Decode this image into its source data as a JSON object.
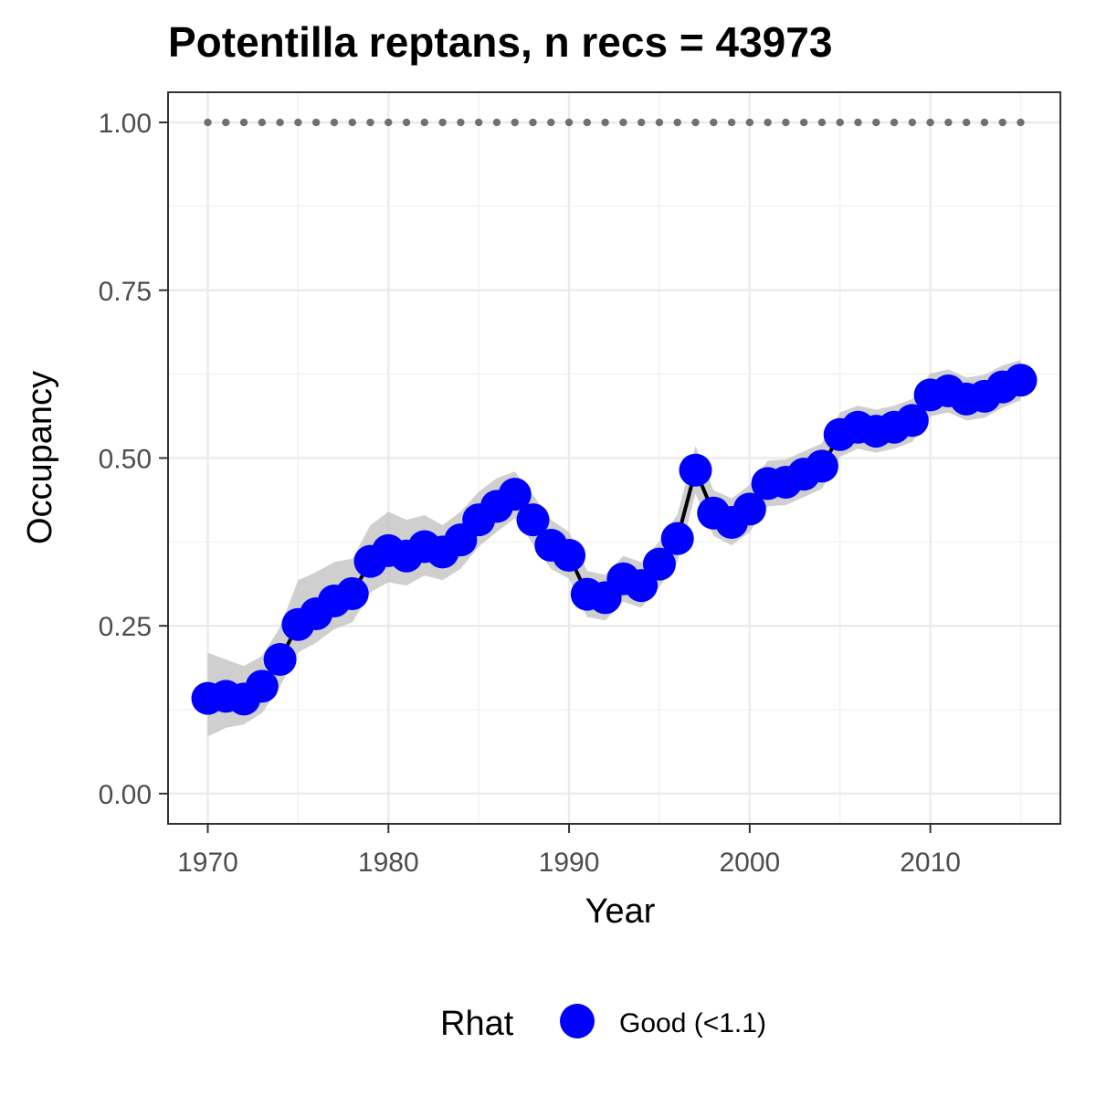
{
  "chart_data": {
    "type": "line",
    "title": "Potentilla reptans, n recs = 43973",
    "xlabel": "Year",
    "ylabel": "Occupancy",
    "xlim": [
      1967.8,
      2017.2
    ],
    "ylim": [
      -0.045,
      1.045
    ],
    "x_ticks": [
      1970,
      1980,
      1990,
      2000,
      2010
    ],
    "x_tick_labels": [
      "1970",
      "1980",
      "1990",
      "2000",
      "2010"
    ],
    "y_ticks": [
      0,
      0.25,
      0.5,
      0.75,
      1.0
    ],
    "y_tick_labels": [
      "0.00",
      "0.25",
      "0.50",
      "0.75",
      "1.00"
    ],
    "grid": true,
    "legend": {
      "title": "Rhat",
      "position": "bottom",
      "entries": [
        {
          "label": "Good (<1.1)",
          "color": "#0000ff"
        }
      ]
    },
    "colors": {
      "points": "#0000ff",
      "line": "#000000",
      "ribbon": "#bfbfbf",
      "reference": "#707070"
    },
    "x": [
      1970,
      1971,
      1972,
      1973,
      1974,
      1975,
      1976,
      1977,
      1978,
      1979,
      1980,
      1981,
      1982,
      1983,
      1984,
      1985,
      1986,
      1987,
      1988,
      1989,
      1990,
      1991,
      1992,
      1993,
      1994,
      1995,
      1996,
      1997,
      1998,
      1999,
      2000,
      2001,
      2002,
      2003,
      2004,
      2005,
      2006,
      2007,
      2008,
      2009,
      2010,
      2011,
      2012,
      2013,
      2014,
      2015
    ],
    "series": [
      {
        "values": [
          0.142,
          0.145,
          0.141,
          0.16,
          0.2,
          0.252,
          0.268,
          0.287,
          0.298,
          0.346,
          0.362,
          0.354,
          0.368,
          0.36,
          0.378,
          0.408,
          0.428,
          0.446,
          0.408,
          0.37,
          0.355,
          0.297,
          0.292,
          0.32,
          0.31,
          0.342,
          0.38,
          0.482,
          0.418,
          0.404,
          0.424,
          0.462,
          0.464,
          0.476,
          0.488,
          0.535,
          0.546,
          0.54,
          0.546,
          0.556,
          0.594,
          0.6,
          0.588,
          0.592,
          0.606,
          0.616
        ],
        "lower": [
          0.085,
          0.098,
          0.103,
          0.12,
          0.16,
          0.21,
          0.225,
          0.245,
          0.255,
          0.3,
          0.315,
          0.31,
          0.325,
          0.318,
          0.335,
          0.368,
          0.39,
          0.41,
          0.372,
          0.335,
          0.32,
          0.263,
          0.258,
          0.286,
          0.277,
          0.308,
          0.345,
          0.447,
          0.384,
          0.37,
          0.39,
          0.428,
          0.43,
          0.442,
          0.454,
          0.502,
          0.514,
          0.508,
          0.514,
          0.524,
          0.562,
          0.568,
          0.556,
          0.56,
          0.575,
          0.586
        ],
        "upper": [
          0.21,
          0.2,
          0.19,
          0.205,
          0.248,
          0.318,
          0.33,
          0.345,
          0.35,
          0.4,
          0.42,
          0.408,
          0.415,
          0.4,
          0.42,
          0.45,
          0.47,
          0.48,
          0.445,
          0.408,
          0.39,
          0.332,
          0.326,
          0.354,
          0.345,
          0.376,
          0.416,
          0.518,
          0.452,
          0.44,
          0.46,
          0.496,
          0.498,
          0.51,
          0.522,
          0.568,
          0.578,
          0.572,
          0.578,
          0.588,
          0.626,
          0.632,
          0.62,
          0.624,
          0.638,
          0.646
        ]
      }
    ],
    "reference_line": {
      "y": 1.0,
      "style": "dotted"
    }
  }
}
